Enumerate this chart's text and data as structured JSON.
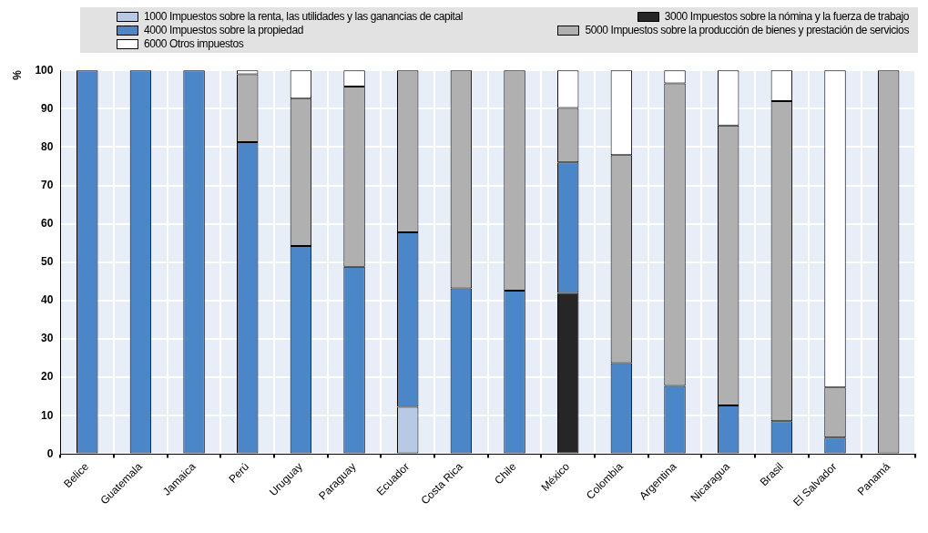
{
  "chart_data": {
    "type": "bar",
    "stacked": true,
    "ylabel": "%",
    "ylim": [
      0,
      100
    ],
    "yticks": [
      0,
      10,
      20,
      30,
      40,
      50,
      60,
      70,
      80,
      90,
      100
    ],
    "grid": true,
    "legend": "top",
    "categories": [
      "Belice",
      "Guatemala",
      "Jamaica",
      "Perú",
      "Uruguay",
      "Paraguay",
      "Ecuador",
      "Costa Rica",
      "Chile",
      "México",
      "Colombia",
      "Argentina",
      "Nicaragua",
      "Brasil",
      "El Salvador",
      "Panamá"
    ],
    "series": [
      {
        "name": "1000 Impuestos sobre la renta, las utilidades y las ganancias de capital",
        "color": "#b8c9e6",
        "values": [
          null,
          null,
          null,
          null,
          null,
          null,
          12.3,
          null,
          null,
          null,
          null,
          null,
          null,
          null,
          null,
          null
        ]
      },
      {
        "name": "3000 Impuestos sobre la nómina y la fuerza de trabajo",
        "color": "#262626",
        "values": [
          null,
          null,
          null,
          null,
          null,
          null,
          null,
          null,
          null,
          42,
          null,
          null,
          null,
          null,
          null,
          null
        ]
      },
      {
        "name": "4000 Impuestos sobre la propiedad",
        "color": "#4a86c8",
        "values": [
          100,
          100,
          100,
          81.3,
          54.2,
          48.8,
          45.5,
          43.2,
          42.6,
          34,
          23.7,
          17.8,
          12.7,
          8.6,
          4.3,
          null
        ]
      },
      {
        "name": "5000 Impuestos sobre la producción de bienes y prestación de servicios",
        "color": "#b0b0b0",
        "values": [
          null,
          null,
          null,
          17.7,
          38.4,
          47,
          42.2,
          56.8,
          57.4,
          14.2,
          54.2,
          78.8,
          72.9,
          83.4,
          13.1,
          100
        ]
      },
      {
        "name": "6000 Otros impuestos",
        "color": "#ffffff",
        "values": [
          null,
          null,
          null,
          1,
          7.4,
          4.2,
          null,
          null,
          null,
          9.8,
          22.1,
          3.4,
          14.4,
          8,
          82.6,
          null
        ]
      }
    ]
  }
}
